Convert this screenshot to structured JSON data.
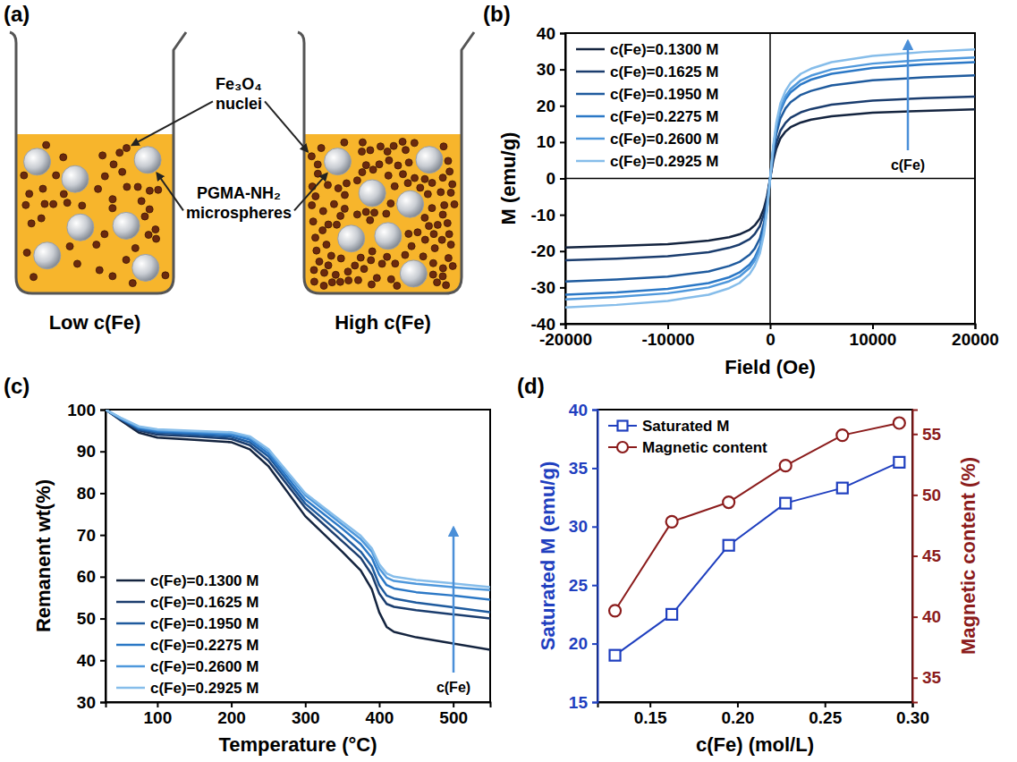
{
  "diagram": {
    "panel_label": "(a)",
    "label_nuclei": "Fe₃O₄ nuclei",
    "label_microspheres": "PGMA-NH₂ microspheres",
    "beakers": [
      "Low c(Fe)",
      "High c(Fe)"
    ]
  },
  "chart_data": [
    {
      "type": "line",
      "panel_label": "(b)",
      "xlabel": "Field (Oe)",
      "ylabel": "M (emu/g)",
      "x": [
        -20000,
        -15000,
        -10000,
        -6000,
        -4000,
        -3000,
        -2000,
        -1500,
        -1000,
        -600,
        -300,
        0,
        300,
        600,
        1000,
        1500,
        2000,
        3000,
        4000,
        6000,
        10000,
        15000,
        20000
      ],
      "xlim": [
        -20000,
        20000
      ],
      "xticks": [
        -20000,
        -10000,
        0,
        10000,
        20000
      ],
      "ylim": [
        -40,
        40
      ],
      "yticks": [
        -40,
        -30,
        -20,
        -10,
        0,
        10,
        20,
        30,
        40
      ],
      "legend": "upper left",
      "annotations": [
        "c(Fe)"
      ],
      "series": [
        {
          "name": "c(Fe)=0.1300 M",
          "color": "#14243f",
          "values": [
            -19.0,
            -18.6,
            -18.1,
            -17.1,
            -16.2,
            -15.4,
            -14.1,
            -12.9,
            -11.0,
            -8.2,
            -4.8,
            0,
            4.8,
            8.2,
            11.0,
            12.9,
            14.1,
            15.4,
            16.2,
            17.1,
            18.1,
            18.6,
            19.0
          ]
        },
        {
          "name": "c(Fe)=0.1625 M",
          "color": "#1b3d6e",
          "values": [
            -22.5,
            -22.1,
            -21.4,
            -20.3,
            -19.1,
            -18.2,
            -16.7,
            -15.3,
            -13.1,
            -9.7,
            -5.6,
            0,
            5.6,
            9.7,
            13.1,
            15.3,
            16.7,
            18.2,
            19.1,
            20.3,
            21.4,
            22.1,
            22.5
          ]
        },
        {
          "name": "c(Fe)=0.1950 M",
          "color": "#1f5b9e",
          "values": [
            -28.4,
            -27.8,
            -27.0,
            -25.6,
            -24.1,
            -23.0,
            -21.0,
            -19.3,
            -16.5,
            -12.2,
            -7.1,
            0,
            7.1,
            12.2,
            16.5,
            19.3,
            21.0,
            23.0,
            24.1,
            25.6,
            27.0,
            27.8,
            28.4
          ]
        },
        {
          "name": "c(Fe)=0.2275 M",
          "color": "#2b78c6",
          "values": [
            -32.0,
            -31.4,
            -30.4,
            -28.8,
            -27.2,
            -25.9,
            -23.7,
            -21.8,
            -18.6,
            -13.8,
            -8.0,
            0,
            8.0,
            13.8,
            18.6,
            21.8,
            23.7,
            25.9,
            27.2,
            28.8,
            30.4,
            31.4,
            32.0
          ]
        },
        {
          "name": "c(Fe)=0.2600 M",
          "color": "#4f98dc",
          "values": [
            -33.3,
            -32.6,
            -31.6,
            -30.0,
            -28.3,
            -27.0,
            -24.6,
            -22.6,
            -19.3,
            -14.3,
            -8.3,
            0,
            8.3,
            14.3,
            19.3,
            22.6,
            24.6,
            27.0,
            28.3,
            30.0,
            31.6,
            32.6,
            33.3
          ]
        },
        {
          "name": "c(Fe)=0.2925 M",
          "color": "#86bdea",
          "values": [
            -35.5,
            -34.8,
            -33.7,
            -32.0,
            -30.2,
            -28.8,
            -26.3,
            -24.1,
            -20.6,
            -15.3,
            -8.9,
            0,
            8.9,
            15.3,
            20.6,
            24.1,
            26.3,
            28.8,
            30.2,
            32.0,
            33.7,
            34.8,
            35.5
          ]
        }
      ]
    },
    {
      "type": "line",
      "panel_label": "(c)",
      "xlabel": "Temperature (°C)",
      "ylabel": "Remanent wt(%)",
      "x": [
        30,
        50,
        75,
        100,
        150,
        200,
        225,
        250,
        300,
        350,
        375,
        390,
        400,
        410,
        420,
        450,
        500,
        550
      ],
      "xlim": [
        30,
        550
      ],
      "xticks": [
        100,
        200,
        300,
        400,
        500
      ],
      "ylim": [
        30,
        100
      ],
      "yticks": [
        30,
        40,
        50,
        60,
        70,
        80,
        90,
        100
      ],
      "legend": "lower left",
      "annotations": [
        "c(Fe)"
      ],
      "series": [
        {
          "name": "c(Fe)=0.1300 M",
          "color": "#14243f",
          "values": [
            100,
            97.5,
            94.5,
            93.3,
            92.8,
            92.2,
            90.5,
            86.5,
            74.5,
            66.0,
            61.5,
            57.0,
            51.5,
            48.0,
            46.8,
            45.5,
            44.0,
            42.5
          ]
        },
        {
          "name": "c(Fe)=0.1625 M",
          "color": "#1b3d6e",
          "values": [
            100,
            97.7,
            95.0,
            94.0,
            93.6,
            93.0,
            91.5,
            87.8,
            76.5,
            68.5,
            64.5,
            60.5,
            56.0,
            53.5,
            52.8,
            52.0,
            51.0,
            50.0
          ]
        },
        {
          "name": "c(Fe)=0.1950 M",
          "color": "#1f5b9e",
          "values": [
            100,
            97.8,
            95.3,
            94.5,
            94.0,
            93.5,
            92.2,
            88.8,
            77.5,
            70.0,
            66.0,
            62.5,
            58.0,
            55.5,
            54.8,
            53.8,
            52.7,
            51.5
          ]
        },
        {
          "name": "c(Fe)=0.2275 M",
          "color": "#2b78c6",
          "values": [
            100,
            97.9,
            95.6,
            94.8,
            94.4,
            94.0,
            92.8,
            89.5,
            78.5,
            71.5,
            67.8,
            64.5,
            60.5,
            58.0,
            57.2,
            56.3,
            55.5,
            54.5
          ]
        },
        {
          "name": "c(Fe)=0.2600 M",
          "color": "#4f98dc",
          "values": [
            100,
            98.0,
            95.8,
            95.1,
            94.7,
            94.3,
            93.3,
            90.2,
            79.5,
            72.5,
            69.0,
            66.0,
            62.0,
            59.8,
            59.0,
            58.3,
            57.5,
            56.8
          ]
        },
        {
          "name": "c(Fe)=0.2925 M",
          "color": "#86bdea",
          "values": [
            100,
            98.1,
            96.0,
            95.3,
            94.9,
            94.6,
            93.6,
            90.6,
            80.0,
            73.2,
            69.8,
            66.8,
            63.0,
            60.8,
            60.0,
            59.2,
            58.4,
            57.5
          ]
        }
      ]
    },
    {
      "type": "line",
      "panel_label": "(d)",
      "xlabel": "c(Fe) (mol/L)",
      "ylabel": "Saturated M (emu/g)",
      "y2label": "Magnetic content (%)",
      "x": [
        0.13,
        0.1625,
        0.195,
        0.2275,
        0.26,
        0.2925
      ],
      "xlim": [
        0.12,
        0.3
      ],
      "xticks": [
        0.15,
        {
          "value": 0.2,
          "label": "0.20"
        },
        0.25,
        {
          "value": 0.3,
          "label": "0.30"
        }
      ],
      "ylim": [
        15,
        40
      ],
      "yticks": [
        15,
        20,
        25,
        30,
        35,
        40
      ],
      "y2lim": [
        33,
        57
      ],
      "y2ticks": [
        35,
        40,
        45,
        50,
        55
      ],
      "legend": "upper left",
      "series": [
        {
          "name": "Saturated M",
          "color": "#1f3fbf",
          "marker": "square",
          "values": [
            19.0,
            22.5,
            28.4,
            32.0,
            33.3,
            35.5
          ]
        },
        {
          "name": "Magnetic content",
          "color": "#8b1c1c",
          "marker": "circle",
          "axis": "y2",
          "values": [
            40.5,
            47.8,
            49.4,
            52.4,
            54.9,
            55.9
          ]
        }
      ]
    }
  ]
}
